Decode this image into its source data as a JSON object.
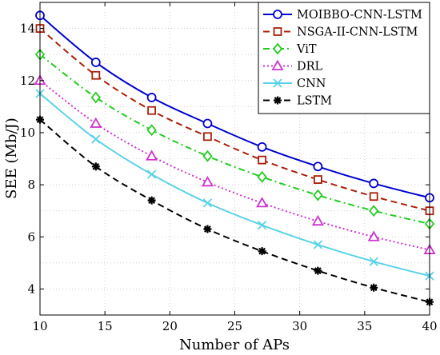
{
  "chart_data": {
    "type": "line",
    "title": "",
    "xlabel": "Number of APs",
    "ylabel": "SEE (Mb/J)",
    "xlim": [
      10,
      40
    ],
    "ylim": [
      3,
      15
    ],
    "xticks": [
      10,
      15,
      20,
      25,
      30,
      35,
      40
    ],
    "yticks": [
      4,
      6,
      8,
      10,
      12,
      14
    ],
    "grid": true,
    "legend_position": "top-right",
    "x": [
      10,
      14.3,
      18.6,
      22.9,
      27.1,
      31.4,
      35.7,
      40
    ],
    "series": [
      {
        "name": "MOIBBO-CNN-LSTM",
        "color": "#0000cc",
        "dash": "solid",
        "marker": "circle",
        "values": [
          14.5,
          12.7,
          11.35,
          10.35,
          9.45,
          8.7,
          8.05,
          7.5
        ]
      },
      {
        "name": "NSGA-II-CNN-LSTM",
        "color": "#aa1f0a",
        "dash": "dashed",
        "marker": "square",
        "values": [
          14.0,
          12.2,
          10.85,
          9.85,
          8.95,
          8.2,
          7.55,
          7.0
        ]
      },
      {
        "name": "ViT",
        "color": "#22cc22",
        "dash": "dashdot",
        "marker": "diamond",
        "values": [
          13.0,
          11.35,
          10.1,
          9.1,
          8.3,
          7.6,
          7.0,
          6.5
        ]
      },
      {
        "name": "DRL",
        "color": "#cc33cc",
        "dash": "dotted",
        "marker": "triangle",
        "values": [
          12.0,
          10.35,
          9.1,
          8.1,
          7.3,
          6.6,
          6.0,
          5.5
        ]
      },
      {
        "name": "CNN",
        "color": "#5bd2e6",
        "dash": "solid",
        "marker": "x",
        "values": [
          11.5,
          9.75,
          8.4,
          7.3,
          6.45,
          5.7,
          5.05,
          4.5
        ]
      },
      {
        "name": "LSTM",
        "color": "#000000",
        "dash": "dashed",
        "marker": "asterisk",
        "values": [
          10.5,
          8.7,
          7.4,
          6.3,
          5.45,
          4.7,
          4.05,
          3.5
        ]
      }
    ]
  }
}
